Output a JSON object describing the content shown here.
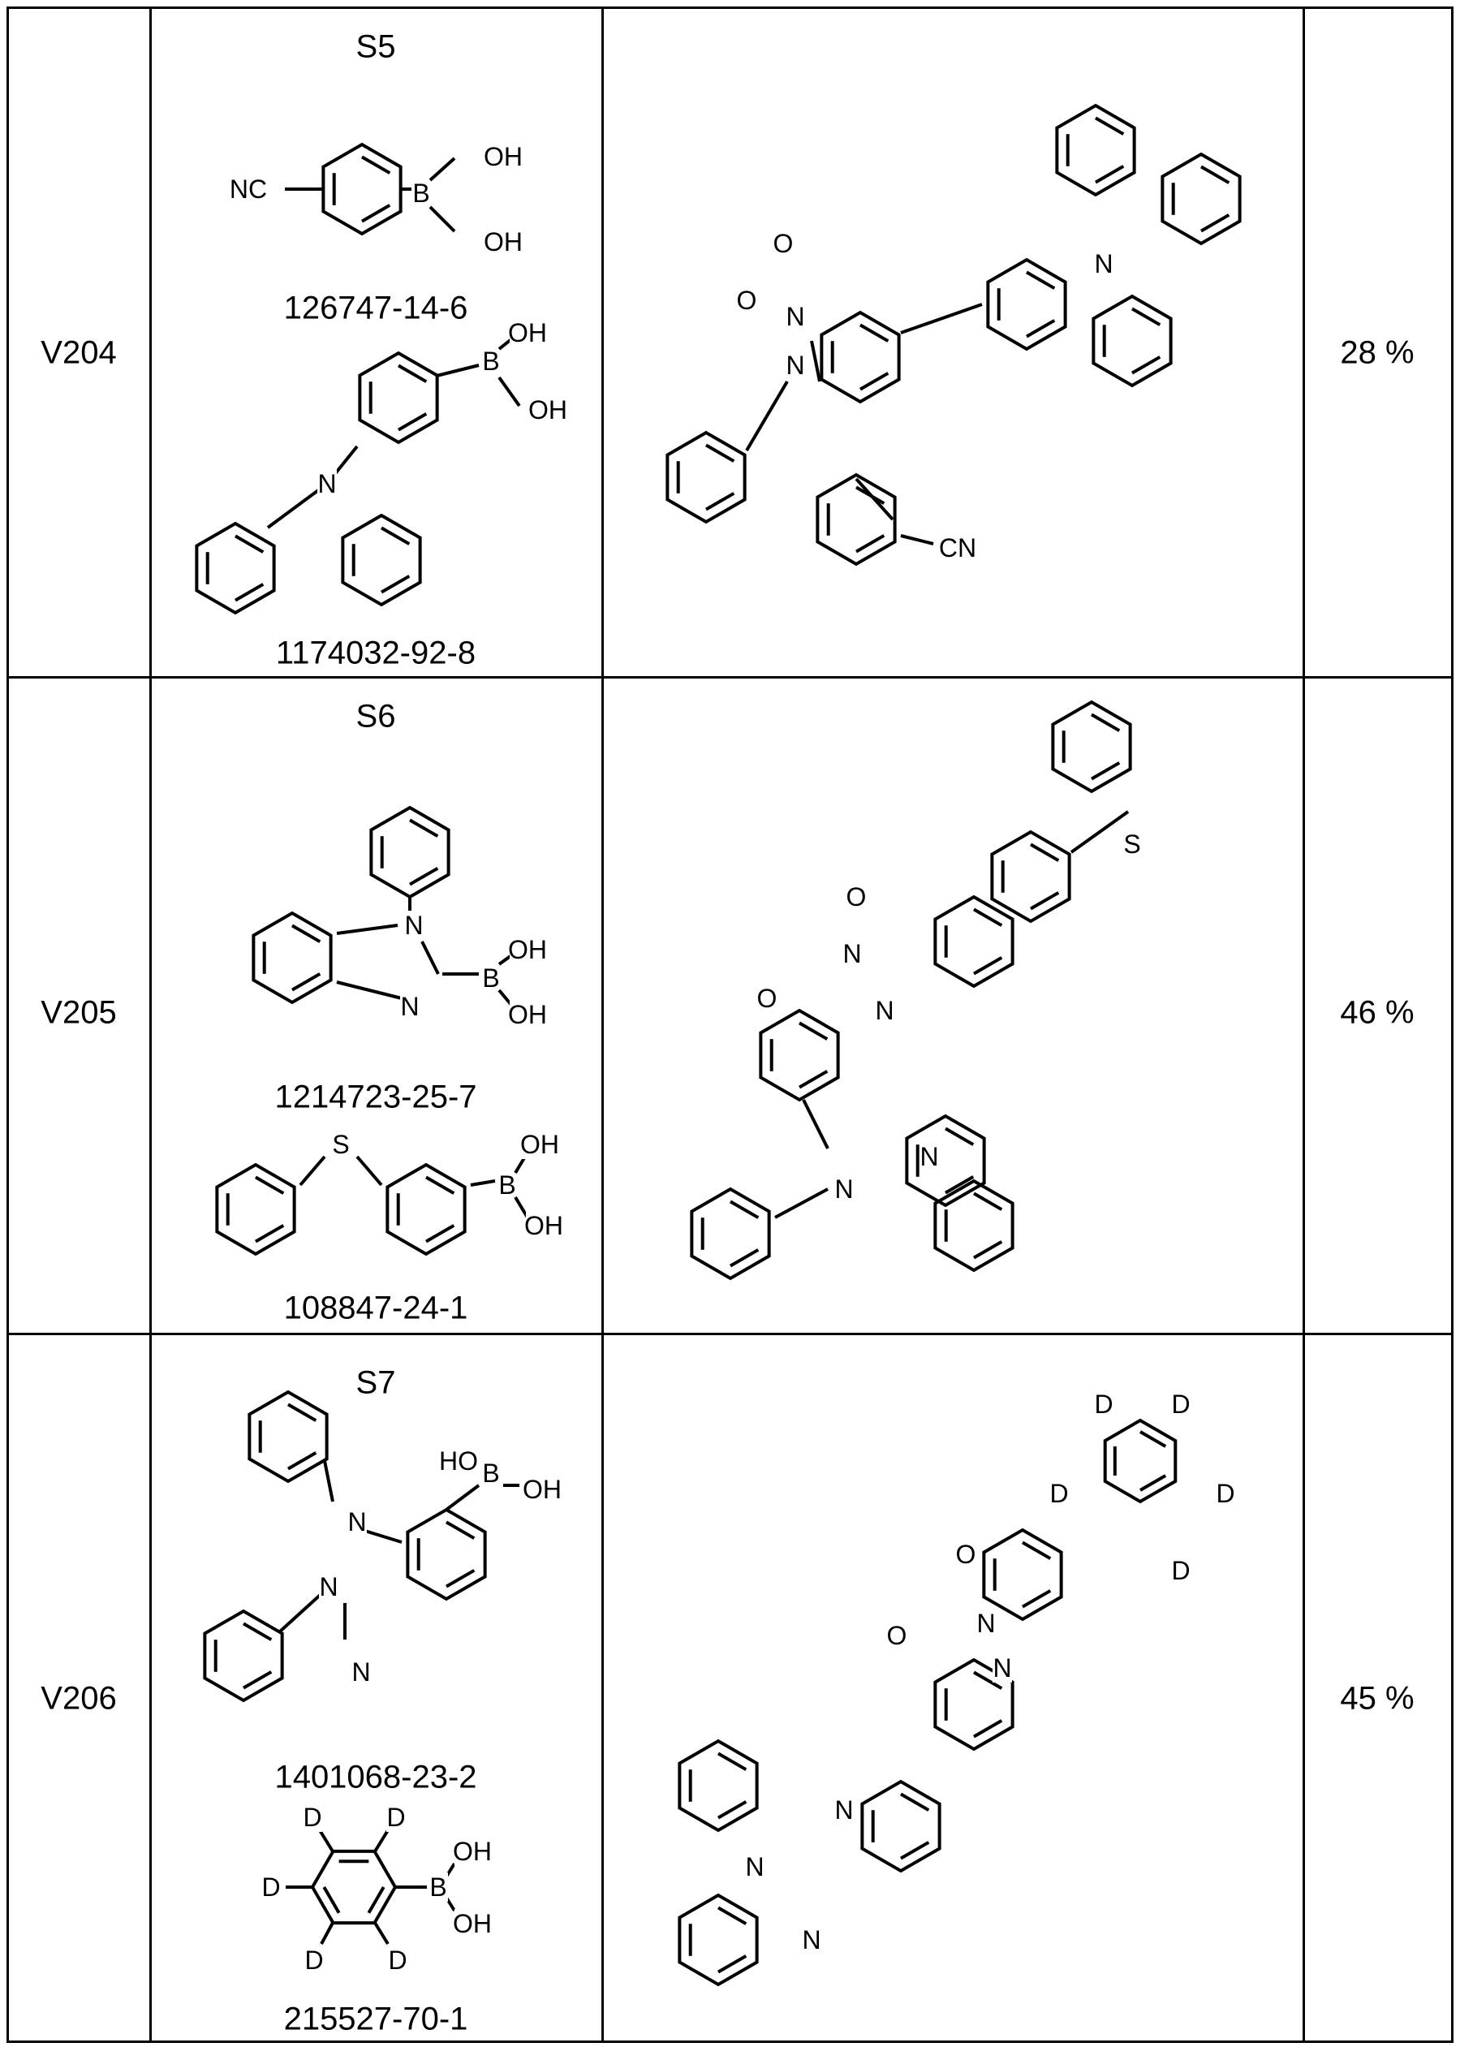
{
  "rows": [
    {
      "id": "V204",
      "scheme": "S5",
      "reagents": [
        {
          "cas": "126747-14-6",
          "labels": [
            "NC",
            "B",
            "OH",
            "OH"
          ]
        },
        {
          "cas": "1174032-92-8",
          "labels": [
            "N",
            "B",
            "OH",
            "OH"
          ]
        }
      ],
      "product_labels": [
        "O",
        "O",
        "N",
        "N",
        "N",
        "CN"
      ],
      "yield": "28 %"
    },
    {
      "id": "V205",
      "scheme": "S6",
      "reagents": [
        {
          "cas": "1214723-25-7",
          "labels": [
            "N",
            "N",
            "B",
            "OH",
            "OH"
          ]
        },
        {
          "cas": "108847-24-1",
          "labels": [
            "S",
            "B",
            "OH",
            "OH"
          ]
        }
      ],
      "product_labels": [
        "S",
        "O",
        "O",
        "N",
        "N",
        "N",
        "N"
      ],
      "yield": "46 %"
    },
    {
      "id": "V206",
      "scheme": "S7",
      "reagents": [
        {
          "cas": "1401068-23-2",
          "labels": [
            "N",
            "N",
            "N",
            "HO",
            "B",
            "OH"
          ]
        },
        {
          "cas": "215527-70-1",
          "labels": [
            "D",
            "D",
            "D",
            "D",
            "D",
            "B",
            "OH",
            "OH"
          ]
        }
      ],
      "product_labels": [
        "D",
        "D",
        "D",
        "D",
        "D",
        "O",
        "O",
        "N",
        "N",
        "N",
        "N",
        "N"
      ],
      "yield": "45 %"
    }
  ]
}
